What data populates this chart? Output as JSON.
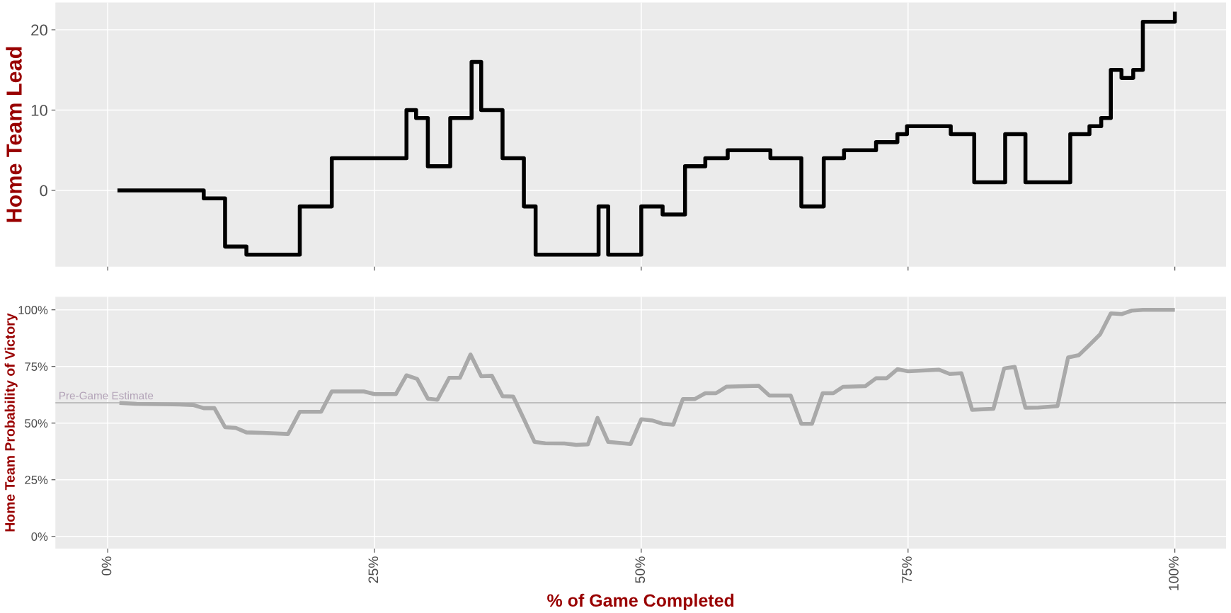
{
  "chart_data": [
    {
      "type": "step",
      "ylabel": "Home Team Lead",
      "grid": true,
      "tick_labels": "y",
      "xlim": [
        -4.9,
        104.8
      ],
      "ylim": [
        -9.5,
        23.4
      ],
      "yticks": [
        0,
        10,
        20
      ],
      "xticks": [
        {
          "value": 0,
          "label": null
        },
        {
          "value": 25,
          "label": null
        },
        {
          "value": 50,
          "label": null
        },
        {
          "value": 75,
          "label": null
        },
        {
          "value": 100,
          "label": null
        }
      ],
      "series": [
        {
          "color": "#000000",
          "x": [
            1.1,
            9.0,
            11.0,
            13.0,
            18.0,
            21.0,
            28.0,
            28.9,
            30.0,
            32.1,
            34.1,
            35.0,
            37.0,
            39.0,
            40.1,
            46.0,
            46.9,
            50.0,
            52.0,
            54.1,
            56.0,
            58.1,
            62.1,
            65.0,
            67.1,
            69.0,
            72.0,
            74.0,
            74.9,
            79.0,
            81.2,
            84.1,
            86.0,
            90.2,
            92.0,
            93.1,
            94.0,
            95.0,
            96.1,
            97.0,
            100.0
          ],
          "values": [
            0,
            -1,
            -7,
            -8,
            -2,
            4,
            10,
            9,
            3,
            9,
            16,
            10,
            4,
            -2,
            -8,
            -2,
            -8,
            -2,
            -3,
            3,
            4,
            5,
            4,
            -2,
            4,
            5,
            6,
            7,
            8,
            7,
            1,
            7,
            1,
            7,
            8,
            9,
            15,
            14,
            15,
            21,
            22
          ]
        }
      ]
    },
    {
      "type": "line",
      "ylabel": "Home Team Probability of Victory",
      "xlabel": "% of Game Completed",
      "grid": true,
      "xlim": [
        -4.9,
        104.8
      ],
      "ylim": [
        -5.4,
        105.8
      ],
      "yticks": [
        {
          "value": 0,
          "label": "0%"
        },
        {
          "value": 25,
          "label": "25%"
        },
        {
          "value": 50,
          "label": "50%"
        },
        {
          "value": 75,
          "label": "75%"
        },
        {
          "value": 100,
          "label": "100%"
        }
      ],
      "xticks": [
        {
          "value": 0,
          "label": "0%"
        },
        {
          "value": 25,
          "label": "25%"
        },
        {
          "value": 50,
          "label": "50%"
        },
        {
          "value": 75,
          "label": "75%"
        },
        {
          "value": 100,
          "label": "100%"
        }
      ],
      "ref_lines": [
        {
          "axis": "y",
          "value": 59,
          "label": "Pre-Game Estimate",
          "color": "#bebebe"
        }
      ],
      "series": [
        {
          "color": "#a9a9a9",
          "x": [
            1.1,
            2.7,
            6.1,
            8.0,
            9.0,
            10.0,
            11.0,
            12.0,
            13.0,
            14.5,
            16.9,
            18.0,
            20.0,
            21.0,
            24.0,
            25.0,
            27.0,
            28.0,
            29.0,
            30.0,
            30.9,
            32.0,
            33.0,
            34.0,
            35.0,
            36.0,
            37.0,
            38.0,
            39.0,
            40.0,
            41.0,
            42.8,
            43.9,
            45.0,
            45.9,
            46.9,
            49.0,
            50.0,
            51.0,
            52.0,
            53.0,
            53.9,
            55.0,
            56.0,
            57.0,
            58.0,
            61.0,
            62.0,
            64.0,
            65.0,
            66.0,
            67.0,
            68.0,
            68.9,
            71.0,
            72.0,
            73.0,
            74.0,
            75.0,
            77.9,
            78.9,
            80.0,
            81.0,
            83.0,
            84.0,
            85.0,
            86.0,
            87.2,
            89.0,
            90.0,
            91.0,
            92.0,
            93.0,
            94.0,
            95.0,
            96.0,
            97.0,
            100.0
          ],
          "values": [
            58.9,
            58.5,
            58.3,
            58.0,
            56.6,
            56.6,
            48.2,
            47.9,
            45.9,
            45.7,
            45.2,
            55.0,
            55.0,
            64.0,
            64.0,
            62.8,
            62.8,
            71.1,
            69.5,
            60.8,
            60.3,
            70.0,
            70.0,
            80.3,
            70.7,
            70.9,
            61.9,
            61.7,
            51.8,
            41.7,
            41.1,
            41.0,
            40.4,
            40.6,
            52.3,
            41.7,
            40.8,
            51.7,
            51.2,
            49.7,
            49.3,
            60.6,
            60.6,
            63.2,
            63.2,
            66.1,
            66.5,
            62.2,
            62.2,
            49.7,
            49.7,
            63.2,
            63.2,
            66.0,
            66.3,
            69.8,
            69.8,
            73.8,
            72.9,
            73.6,
            71.7,
            72.0,
            55.9,
            56.3,
            74.1,
            74.8,
            56.8,
            56.9,
            57.5,
            79.0,
            80.0,
            84.5,
            89.2,
            98.4,
            98.1,
            99.7,
            100,
            100
          ]
        }
      ]
    }
  ]
}
